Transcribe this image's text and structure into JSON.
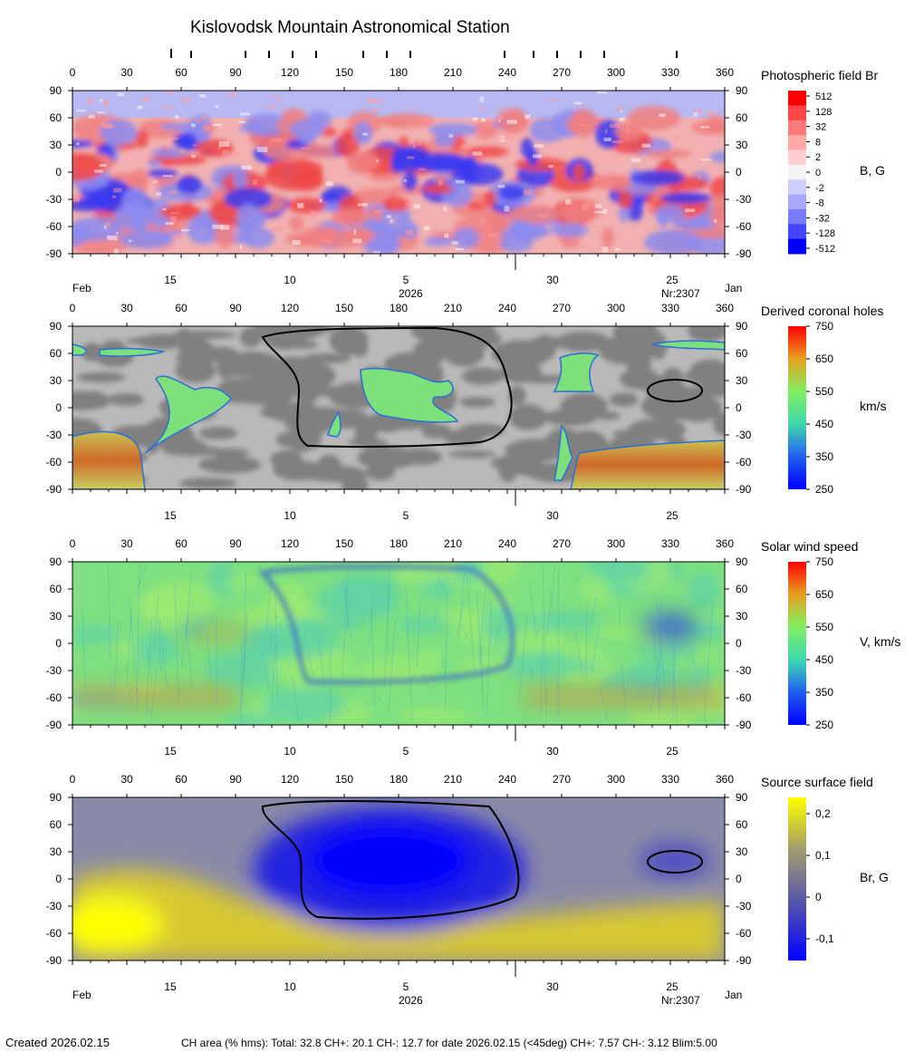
{
  "title": "Kislovodsk Mountain Astronomical Station",
  "lon_ticks": [
    0,
    30,
    60,
    90,
    120,
    150,
    180,
    210,
    240,
    270,
    300,
    330,
    360
  ],
  "lat_ticks": [
    90,
    60,
    30,
    0,
    -30,
    -60,
    -90
  ],
  "date_ticks": [
    "15",
    "10",
    "5",
    "30",
    "25"
  ],
  "date_axis": {
    "left_month": "Feb",
    "right_month": "Jan",
    "year": "2026",
    "rotation": "Nr:2307"
  },
  "panels": [
    {
      "title": "Photospheric field Br",
      "unit": "B, G",
      "colorbar": {
        "labels": [
          "512",
          "128",
          "32",
          "8",
          "2",
          "0",
          "-2",
          "-8",
          "-32",
          "-128",
          "-512"
        ],
        "colors": [
          "#ff0000",
          "#ff4545",
          "#ff7a7a",
          "#ffa8a8",
          "#ffcfcf",
          "#f4f4f4",
          "#cfcfff",
          "#a8a8ff",
          "#7a7aff",
          "#4545ff",
          "#0000ff"
        ]
      }
    },
    {
      "title": "Derived coronal holes",
      "unit": "km/s",
      "colorbar": {
        "labels": [
          "750",
          "650",
          "550",
          "450",
          "350",
          "250"
        ],
        "colors": [
          "#ff0000",
          "#e8a020",
          "#80ef60",
          "#40d8b0",
          "#2060f0",
          "#0000ff"
        ]
      }
    },
    {
      "title": "Solar wind speed",
      "unit": "V, km/s",
      "colorbar": {
        "labels": [
          "750",
          "650",
          "550",
          "450",
          "350",
          "250"
        ],
        "colors": [
          "#ff0000",
          "#e8a020",
          "#80ef60",
          "#40d8b0",
          "#2060f0",
          "#0000ff"
        ]
      }
    },
    {
      "title": "Source surface field",
      "unit": "Br, G",
      "colorbar": {
        "labels": [
          "0,2",
          "0,1",
          "0",
          "-0,1"
        ],
        "colors": [
          "#ffff00",
          "#a09870",
          "#5050b0",
          "#0000ff"
        ]
      }
    }
  ],
  "footer": {
    "created": "Created  2026.02.15",
    "stats": "CH area (% hms): Total: 32.8 CH+: 20.1    CH-: 12.7 for date 2026.02.15 (<45deg) CH+: 7.57      CH-: 3.12 Blim:5.00"
  },
  "chart_data": [
    {
      "type": "heatmap",
      "title": "Photospheric field Br",
      "xlabel": "",
      "ylabel": "",
      "xlim": [
        0,
        360
      ],
      "ylim": [
        -90,
        90
      ],
      "colorbar_label": "B, G",
      "colorbar_ticks": [
        512,
        128,
        32,
        8,
        2,
        0,
        -2,
        -8,
        -32,
        -128,
        -512
      ]
    },
    {
      "type": "heatmap",
      "title": "Derived coronal holes",
      "xlim": [
        0,
        360
      ],
      "ylim": [
        -90,
        90
      ],
      "colorbar_label": "km/s",
      "colorbar_range": [
        250,
        750
      ]
    },
    {
      "type": "heatmap",
      "title": "Solar wind speed",
      "xlim": [
        0,
        360
      ],
      "ylim": [
        -90,
        90
      ],
      "colorbar_label": "V, km/s",
      "colorbar_range": [
        250,
        750
      ]
    },
    {
      "type": "heatmap",
      "title": "Source surface field",
      "xlim": [
        0,
        360
      ],
      "ylim": [
        -90,
        90
      ],
      "colorbar_label": "Br, G",
      "colorbar_range": [
        -0.1,
        0.2
      ]
    }
  ]
}
